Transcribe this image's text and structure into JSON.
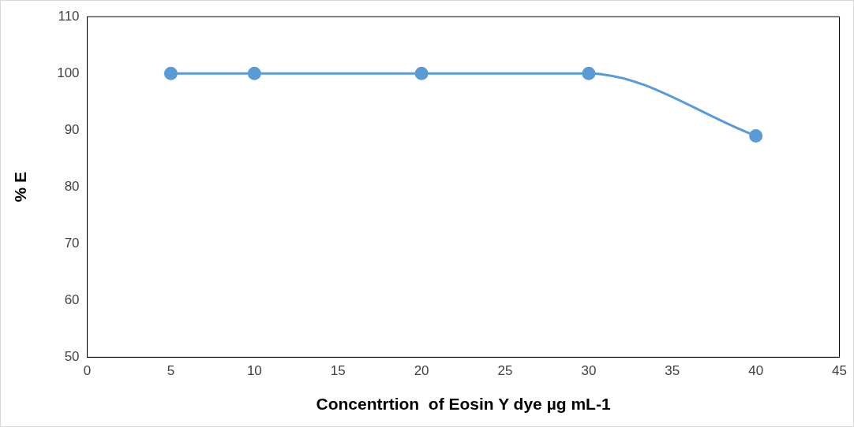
{
  "chart_data": {
    "type": "line",
    "xlabel": "Concentrtion  of Eosin Y dye µg mL-1",
    "ylabel": "% E",
    "x": [
      5,
      10,
      20,
      30,
      40
    ],
    "series": [
      {
        "color": "#5b9bd5",
        "values": [
          100,
          100,
          100,
          100,
          89
        ]
      }
    ],
    "xlim": [
      0,
      45
    ],
    "xticks": [
      0,
      5,
      10,
      15,
      20,
      25,
      30,
      35,
      40,
      45
    ],
    "ylim": [
      50,
      110
    ],
    "yticks": [
      50,
      60,
      70,
      80,
      90,
      100,
      110
    ],
    "grid": false,
    "marker": "circle",
    "line_style": "solid"
  }
}
